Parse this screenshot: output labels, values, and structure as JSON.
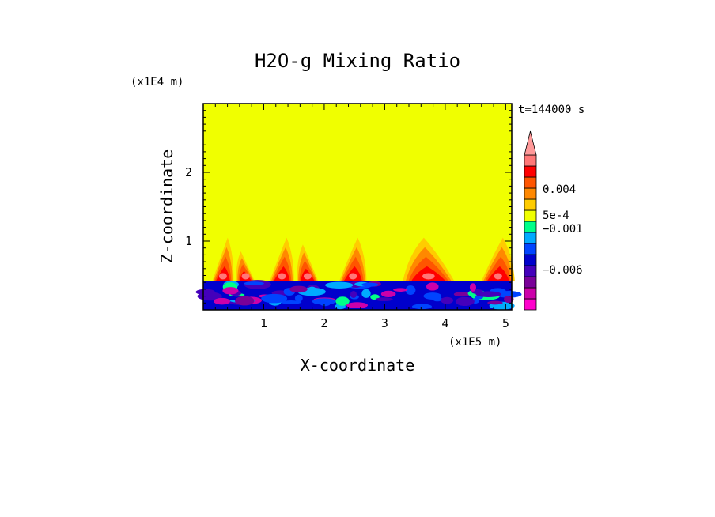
{
  "chart_data": {
    "type": "heatmap",
    "title": "H2O-g Mixing Ratio",
    "time_label": "t=144000 s",
    "xlabel": "X-coordinate",
    "ylabel": "Z-coordinate",
    "x_scale_label": "(x1E5 m)",
    "y_scale_label": "(x1E4 m)",
    "xlim": [
      0,
      5.1
    ],
    "ylim": [
      0,
      3
    ],
    "x_ticks": [
      "1",
      "2",
      "3",
      "4",
      "5"
    ],
    "y_ticks": [
      "1",
      "2"
    ],
    "background_level_color": "#f0ff00",
    "colorbar": {
      "extend": "max",
      "levels": [
        {
          "color": "#ff00cc"
        },
        {
          "color": "#cc00aa"
        },
        {
          "color": "#7a0099"
        },
        {
          "color": "#4400bb"
        },
        {
          "color": "#0000cc"
        },
        {
          "color": "#0044ff"
        },
        {
          "color": "#00aaff"
        },
        {
          "color": "#00ff88"
        },
        {
          "color": "#f0ff00"
        },
        {
          "color": "#ffcc00"
        },
        {
          "color": "#ff8800"
        },
        {
          "color": "#ff5500"
        },
        {
          "color": "#ff0000"
        },
        {
          "color": "#ff7777"
        }
      ],
      "extend_color": "#ff9999",
      "labels": [
        {
          "text": "0.004"
        },
        {
          "text": "5e-4"
        },
        {
          "text": "−0.001"
        },
        {
          "text": "−0.006"
        }
      ]
    },
    "plumes": [
      {
        "x": 0.15,
        "top": 1.05,
        "width": 0.35
      },
      {
        "x": 0.55,
        "top": 0.85,
        "width": 0.3
      },
      {
        "x": 1.1,
        "top": 1.05,
        "width": 0.4
      },
      {
        "x": 1.55,
        "top": 0.95,
        "width": 0.35
      },
      {
        "x": 2.25,
        "top": 1.05,
        "width": 0.45
      },
      {
        "x": 3.3,
        "top": 1.05,
        "width": 0.85
      },
      {
        "x": 4.6,
        "top": 1.05,
        "width": 0.55
      }
    ],
    "boundary_z": 0.42
  }
}
